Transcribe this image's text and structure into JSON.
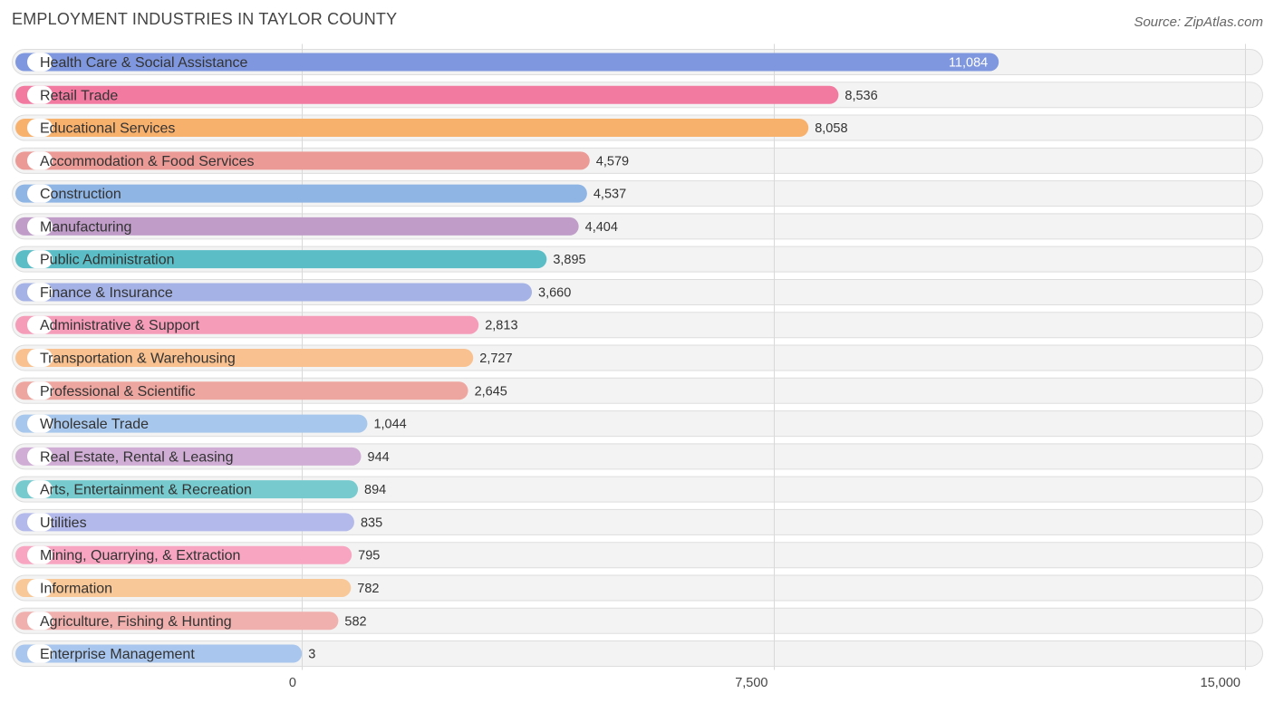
{
  "title": "EMPLOYMENT INDUSTRIES IN TAYLOR COUNTY",
  "source": "Source: ZipAtlas.com",
  "chart_data": {
    "type": "bar",
    "orientation": "horizontal",
    "title": "EMPLOYMENT INDUSTRIES IN TAYLOR COUNTY",
    "xlabel": "",
    "ylabel": "",
    "xlim": [
      0,
      15000
    ],
    "x_ticks": [
      0,
      7500,
      15000
    ],
    "x_tick_labels": [
      "0",
      "7,500",
      "15,000"
    ],
    "grid": true,
    "categories": [
      "Health Care & Social Assistance",
      "Retail Trade",
      "Educational Services",
      "Accommodation & Food Services",
      "Construction",
      "Manufacturing",
      "Public Administration",
      "Finance & Insurance",
      "Administrative & Support",
      "Transportation & Warehousing",
      "Professional & Scientific",
      "Wholesale Trade",
      "Real Estate, Rental & Leasing",
      "Arts, Entertainment & Recreation",
      "Utilities",
      "Mining, Quarrying, & Extraction",
      "Information",
      "Agriculture, Fishing & Hunting",
      "Enterprise Management"
    ],
    "values": [
      11084,
      8536,
      8058,
      4579,
      4537,
      4404,
      3895,
      3660,
      2813,
      2727,
      2645,
      1044,
      944,
      894,
      835,
      795,
      782,
      582,
      3
    ],
    "value_labels": [
      "11,084",
      "8,536",
      "8,058",
      "4,579",
      "4,537",
      "4,404",
      "3,895",
      "3,660",
      "2,813",
      "2,727",
      "2,645",
      "1,044",
      "944",
      "894",
      "835",
      "795",
      "782",
      "582",
      "3"
    ],
    "colors": [
      "#7f97de",
      "#f27aa1",
      "#f8b16d",
      "#ec9a96",
      "#8fb5e5",
      "#bf9dc8",
      "#5bbec6",
      "#a5b2e6",
      "#f59cb9",
      "#f9c18f",
      "#eea6a0",
      "#a8c7ec",
      "#cfadd5",
      "#77cbcf",
      "#b3b9ea",
      "#f7a5c0",
      "#f9c898",
      "#f0b0ad",
      "#a9c6ee"
    ]
  }
}
